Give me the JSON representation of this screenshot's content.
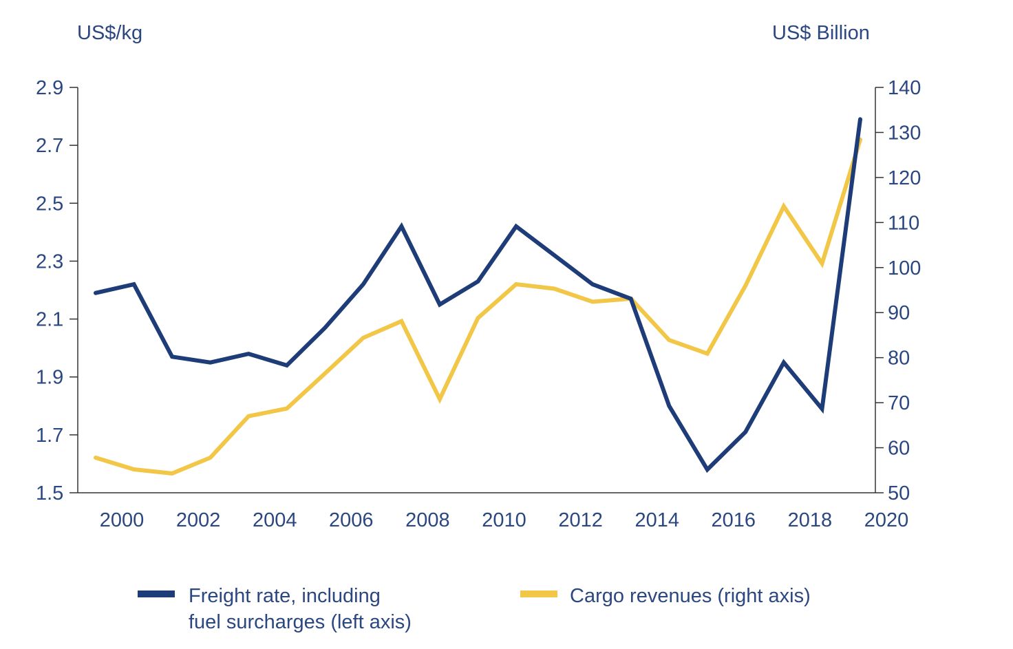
{
  "chart_data": {
    "type": "line",
    "x": [
      2000,
      2001,
      2002,
      2003,
      2004,
      2005,
      2006,
      2007,
      2008,
      2009,
      2010,
      2011,
      2012,
      2013,
      2014,
      2015,
      2016,
      2017,
      2018,
      2019,
      2020
    ],
    "x_tick_labels": [
      "2000",
      "2002",
      "2004",
      "2006",
      "2008",
      "2010",
      "2012",
      "2014",
      "2016",
      "2018",
      "2020"
    ],
    "left_axis": {
      "label": "US$/kg",
      "ylim": [
        1.5,
        2.9
      ],
      "ticks": [
        "1.5",
        "1.7",
        "1.9",
        "2.1",
        "2.3",
        "2.5",
        "2.7",
        "2.9"
      ]
    },
    "right_axis": {
      "label": "US$ Billion",
      "ylim": [
        50,
        140
      ],
      "ticks": [
        "50",
        "60",
        "70",
        "80",
        "90",
        "100",
        "110",
        "120",
        "130",
        "140"
      ]
    },
    "grid": false,
    "legend_position": "bottom",
    "series": [
      {
        "name": "Freight rate, including fuel surcharges (left axis)",
        "legend_lines": [
          "Freight rate, including",
          "fuel surcharges (left axis)"
        ],
        "axis": "left",
        "color": "#1e3c78",
        "values": [
          2.19,
          2.22,
          1.97,
          1.95,
          1.98,
          1.94,
          2.07,
          2.22,
          2.42,
          2.15,
          2.23,
          2.42,
          2.32,
          2.22,
          2.17,
          1.8,
          1.58,
          1.71,
          1.95,
          1.79,
          2.79
        ]
      },
      {
        "name": "Cargo revenues (right axis)",
        "legend_lines": [
          "Cargo revenues (right axis)"
        ],
        "axis": "right",
        "color": "#f2c646",
        "values": [
          57.8,
          55.2,
          54.3,
          57.8,
          67.0,
          68.7,
          76.5,
          84.4,
          88.1,
          70.8,
          88.8,
          96.3,
          95.3,
          92.4,
          93.1,
          83.9,
          80.9,
          96.0,
          113.6,
          100.9,
          128.4
        ]
      }
    ]
  }
}
